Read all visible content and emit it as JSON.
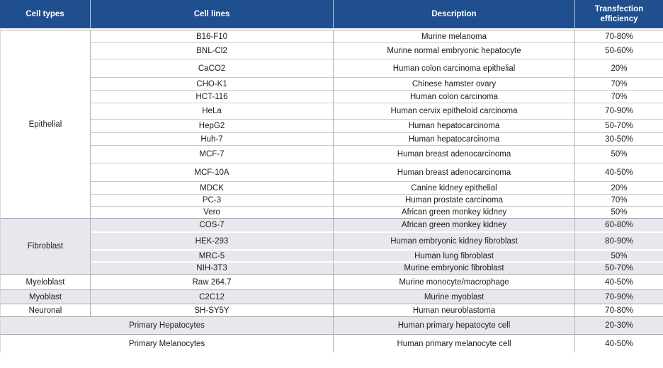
{
  "table": {
    "columns": [
      "Cell types",
      "Cell lines",
      "Description",
      "Transfection efficiency"
    ],
    "colors": {
      "header_bg": "#1f4f8f",
      "band_bg": "#e9e7ee"
    },
    "groups": [
      {
        "type": "Epithelial",
        "rows": [
          {
            "line": "B16-F10",
            "desc": "Murine melanoma",
            "eff": "70-80%"
          },
          {
            "line": "BNL-Cl2",
            "desc": "Murine normal embryonic hepatocyte",
            "eff": "50-60%"
          },
          {
            "line": "CaCO2",
            "desc": "Human colon carcinoma epithelial",
            "eff": "20%"
          },
          {
            "line": "CHO-K1",
            "desc": "Chinese hamster ovary",
            "eff": "70%"
          },
          {
            "line": "HCT-116",
            "desc": "Human colon carcinoma",
            "eff": "70%"
          },
          {
            "line": "HeLa",
            "desc": "Human cervix epitheloid carcinoma",
            "eff": "70-90%"
          },
          {
            "line": "HepG2",
            "desc": "Human hepatocarcinoma",
            "eff": "50-70%"
          },
          {
            "line": "Huh-7",
            "desc": "Human hepatocarcinoma",
            "eff": "30-50%"
          },
          {
            "line": "MCF-7",
            "desc": "Human breast adenocarcinoma",
            "eff": "50%"
          },
          {
            "line": "MCF-10A",
            "desc": "Human breast adenocarcinoma",
            "eff": "40-50%"
          },
          {
            "line": "MDCK",
            "desc": "Canine kidney epithelial",
            "eff": "20%"
          },
          {
            "line": "PC-3",
            "desc": "Human prostate carcinoma",
            "eff": "70%"
          },
          {
            "line": "Vero",
            "desc": "African green monkey kidney",
            "eff": "50%"
          }
        ]
      },
      {
        "type": "Fibroblast",
        "rows": [
          {
            "line": "COS-7",
            "desc": "African green monkey kidney",
            "eff": "60-80%"
          },
          {
            "line": "HEK-293",
            "desc": "Human embryonic kidney fibroblast",
            "eff": "80-90%"
          },
          {
            "line": "MRC-5",
            "desc": "Human lung fibroblast",
            "eff": "50%"
          },
          {
            "line": "NIH-3T3",
            "desc": "Murine embryonic fibroblast",
            "eff": "50-70%"
          }
        ]
      },
      {
        "type": "Myeloblast",
        "rows": [
          {
            "line": "Raw 264.7",
            "desc": "Murine monocyte/macrophage",
            "eff": "40-50%"
          }
        ]
      },
      {
        "type": "Myoblast",
        "rows": [
          {
            "line": "C2C12",
            "desc": "Murine myoblast",
            "eff": "70-90%"
          }
        ]
      },
      {
        "type": "Neuronal",
        "rows": [
          {
            "line": "SH-SY5Y",
            "desc": "Human neuroblastoma",
            "eff": "70-80%"
          }
        ]
      },
      {
        "type": "Primary Hepatocytes",
        "merged": true,
        "rows": [
          {
            "desc": "Human primary hepatocyte cell",
            "eff": "20-30%"
          }
        ]
      },
      {
        "type": "Primary Melanocytes",
        "merged": true,
        "rows": [
          {
            "desc": "Human primary melanocyte cell",
            "eff": "40-50%"
          }
        ]
      }
    ]
  }
}
